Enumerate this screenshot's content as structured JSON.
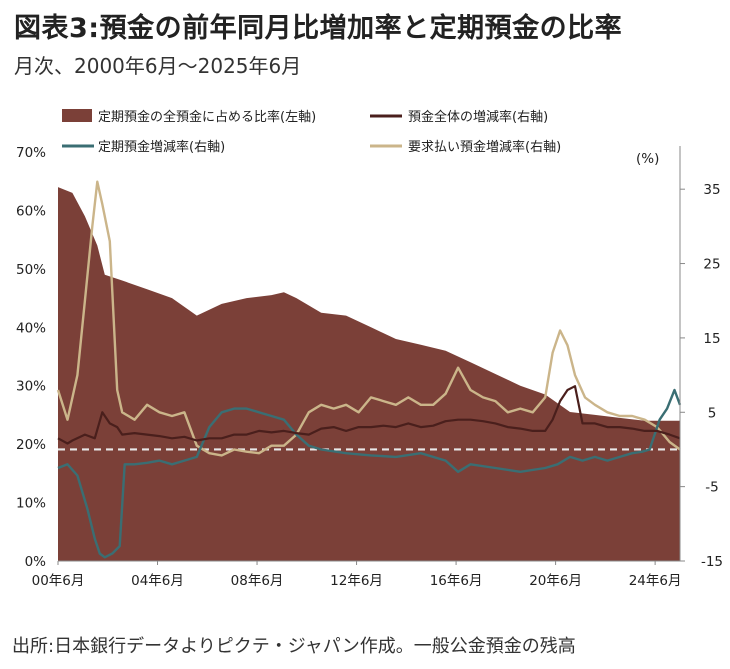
{
  "title": "図表3:預金の前年同月比増加率と定期預金の比率",
  "subtitle": "月次、2000年6月〜2025年6月",
  "source": "出所:日本銀行データよりピクテ・ジャパン作成。一般公金預金の残高",
  "chart_data": {
    "type": "area+line",
    "x_tick_labels": [
      "00年6月",
      "04年6月",
      "08年6月",
      "12年6月",
      "16年6月",
      "20年6月",
      "24年6月"
    ],
    "x_range": [
      2000.42,
      2025.42
    ],
    "left_axis": {
      "ticks": [
        "0%",
        "10%",
        "20%",
        "30%",
        "40%",
        "50%",
        "60%",
        "70%"
      ],
      "range": [
        0,
        70
      ]
    },
    "right_axis": {
      "ticks": [
        "-15",
        "-5",
        "5",
        "15",
        "25",
        "35"
      ],
      "range": [
        -15,
        40
      ],
      "unit_label": "(%)"
    },
    "reference_line": {
      "axis": "right",
      "value": 0,
      "style": "dashed"
    },
    "legend": [
      {
        "name": "定期預金の全預金に占める比率(左軸)",
        "type": "area",
        "color": "#7b4038"
      },
      {
        "name": "預金全体の増減率(右軸)",
        "type": "line",
        "color": "#4a1f1c"
      },
      {
        "name": "定期預金増減率(右軸)",
        "type": "line",
        "color": "#3a6e73"
      },
      {
        "name": "要求払い預金増減率(右軸)",
        "type": "line",
        "color": "#cbb58a"
      }
    ],
    "series": [
      {
        "name": "定期預金の全預金に占める比率(左軸)",
        "axis": "left",
        "x": [
          2000.42,
          2001.0,
          2001.5,
          2002.0,
          2002.3,
          2003.0,
          2004.0,
          2005.0,
          2006.0,
          2007.0,
          2008.0,
          2009.0,
          2009.5,
          2010.0,
          2011.0,
          2012.0,
          2013.0,
          2014.0,
          2015.0,
          2016.0,
          2017.0,
          2018.0,
          2019.0,
          2020.0,
          2020.5,
          2021.0,
          2022.0,
          2023.0,
          2024.0,
          2025.0,
          2025.42
        ],
        "y": [
          64,
          63,
          59,
          54,
          49,
          48,
          46.5,
          45,
          42,
          44,
          45,
          45.5,
          46,
          45,
          42.5,
          42,
          40,
          38,
          37,
          36,
          34,
          32,
          30,
          28.5,
          27,
          25.5,
          25,
          24.5,
          24,
          24,
          24
        ]
      },
      {
        "name": "預金全体の増減率(右軸)",
        "axis": "right",
        "x": [
          2000.42,
          2000.8,
          2001.0,
          2001.5,
          2001.9,
          2002.2,
          2002.5,
          2002.8,
          2003.0,
          2003.5,
          2004.0,
          2004.5,
          2005.0,
          2005.5,
          2006.0,
          2006.5,
          2007.0,
          2007.5,
          2008.0,
          2008.5,
          2009.0,
          2009.5,
          2010.0,
          2010.5,
          2011.0,
          2011.5,
          2012.0,
          2012.5,
          2013.0,
          2013.5,
          2014.0,
          2014.5,
          2015.0,
          2015.5,
          2016.0,
          2016.5,
          2017.0,
          2017.5,
          2018.0,
          2018.5,
          2019.0,
          2019.5,
          2020.0,
          2020.3,
          2020.6,
          2020.9,
          2021.2,
          2021.5,
          2022.0,
          2022.5,
          2023.0,
          2023.5,
          2024.0,
          2024.5,
          2025.0,
          2025.42
        ],
        "y": [
          1.5,
          0.8,
          1.2,
          2.0,
          1.5,
          5.0,
          3.5,
          3.0,
          2.0,
          2.2,
          2.0,
          1.8,
          1.5,
          1.7,
          1.2,
          1.5,
          1.5,
          2.0,
          2.0,
          2.5,
          2.3,
          2.5,
          2.2,
          2.0,
          2.8,
          3.0,
          2.5,
          3.0,
          3.0,
          3.2,
          3.0,
          3.5,
          3.0,
          3.2,
          3.8,
          4.0,
          4.0,
          3.8,
          3.5,
          3.0,
          2.8,
          2.5,
          2.5,
          4.0,
          6.5,
          8.0,
          8.5,
          3.5,
          3.5,
          3.0,
          3.0,
          2.8,
          2.5,
          2.5,
          2.0,
          1.5
        ]
      },
      {
        "name": "定期預金増減率(右軸)",
        "axis": "right",
        "x": [
          2000.42,
          2000.8,
          2001.2,
          2001.6,
          2001.9,
          2002.1,
          2002.3,
          2002.6,
          2002.9,
          2003.1,
          2003.5,
          2004.0,
          2004.5,
          2005.0,
          2005.5,
          2006.0,
          2006.5,
          2007.0,
          2007.5,
          2008.0,
          2008.5,
          2009.0,
          2009.5,
          2010.0,
          2010.5,
          2011.0,
          2012.0,
          2013.0,
          2014.0,
          2015.0,
          2016.0,
          2016.5,
          2017.0,
          2018.0,
          2019.0,
          2020.0,
          2020.5,
          2021.0,
          2021.5,
          2022.0,
          2022.5,
          2023.0,
          2023.5,
          2023.9,
          2024.2,
          2024.6,
          2024.9,
          2025.2,
          2025.42
        ],
        "y": [
          -2.5,
          -2.0,
          -3.5,
          -8.0,
          -12.0,
          -14.0,
          -14.5,
          -14.0,
          -13.0,
          -2.0,
          -2.0,
          -1.8,
          -1.5,
          -2.0,
          -1.5,
          -1.0,
          3.0,
          5.0,
          5.5,
          5.5,
          5.0,
          4.5,
          4.0,
          2.0,
          0.5,
          0.0,
          -0.5,
          -0.8,
          -1.0,
          -0.5,
          -1.5,
          -3.0,
          -2.0,
          -2.5,
          -3.0,
          -2.5,
          -2.0,
          -1.0,
          -1.5,
          -1.0,
          -1.5,
          -1.0,
          -0.5,
          -0.3,
          0.0,
          4.0,
          5.5,
          8.0,
          6.0
        ]
      },
      {
        "name": "要求払い預金増減率(右軸)",
        "axis": "right",
        "x": [
          2000.42,
          2000.8,
          2001.2,
          2001.5,
          2001.8,
          2002.0,
          2002.2,
          2002.5,
          2002.8,
          2003.0,
          2003.5,
          2004.0,
          2004.5,
          2005.0,
          2005.5,
          2006.0,
          2006.5,
          2007.0,
          2007.5,
          2008.0,
          2008.5,
          2009.0,
          2009.5,
          2010.0,
          2010.5,
          2011.0,
          2011.5,
          2012.0,
          2012.5,
          2013.0,
          2013.5,
          2014.0,
          2014.5,
          2015.0,
          2015.5,
          2016.0,
          2016.5,
          2017.0,
          2017.5,
          2018.0,
          2018.5,
          2019.0,
          2019.5,
          2020.0,
          2020.3,
          2020.6,
          2020.9,
          2021.2,
          2021.6,
          2022.0,
          2022.5,
          2023.0,
          2023.5,
          2024.0,
          2024.5,
          2025.0,
          2025.42
        ],
        "y": [
          8.0,
          4.0,
          10.0,
          20.0,
          30.0,
          36.0,
          33.0,
          28.0,
          8.0,
          5.0,
          4.0,
          6.0,
          5.0,
          4.5,
          5.0,
          0.5,
          -0.5,
          -0.8,
          0.0,
          -0.3,
          -0.5,
          0.5,
          0.5,
          2.0,
          5.0,
          6.0,
          5.5,
          6.0,
          5.0,
          7.0,
          6.5,
          6.0,
          7.0,
          6.0,
          6.0,
          7.5,
          11.0,
          8.0,
          7.0,
          6.5,
          5.0,
          5.5,
          5.0,
          7.0,
          13.0,
          16.0,
          14.0,
          10.0,
          7.0,
          6.0,
          5.0,
          4.5,
          4.5,
          4.0,
          3.0,
          1.0,
          0.0
        ]
      }
    ]
  }
}
